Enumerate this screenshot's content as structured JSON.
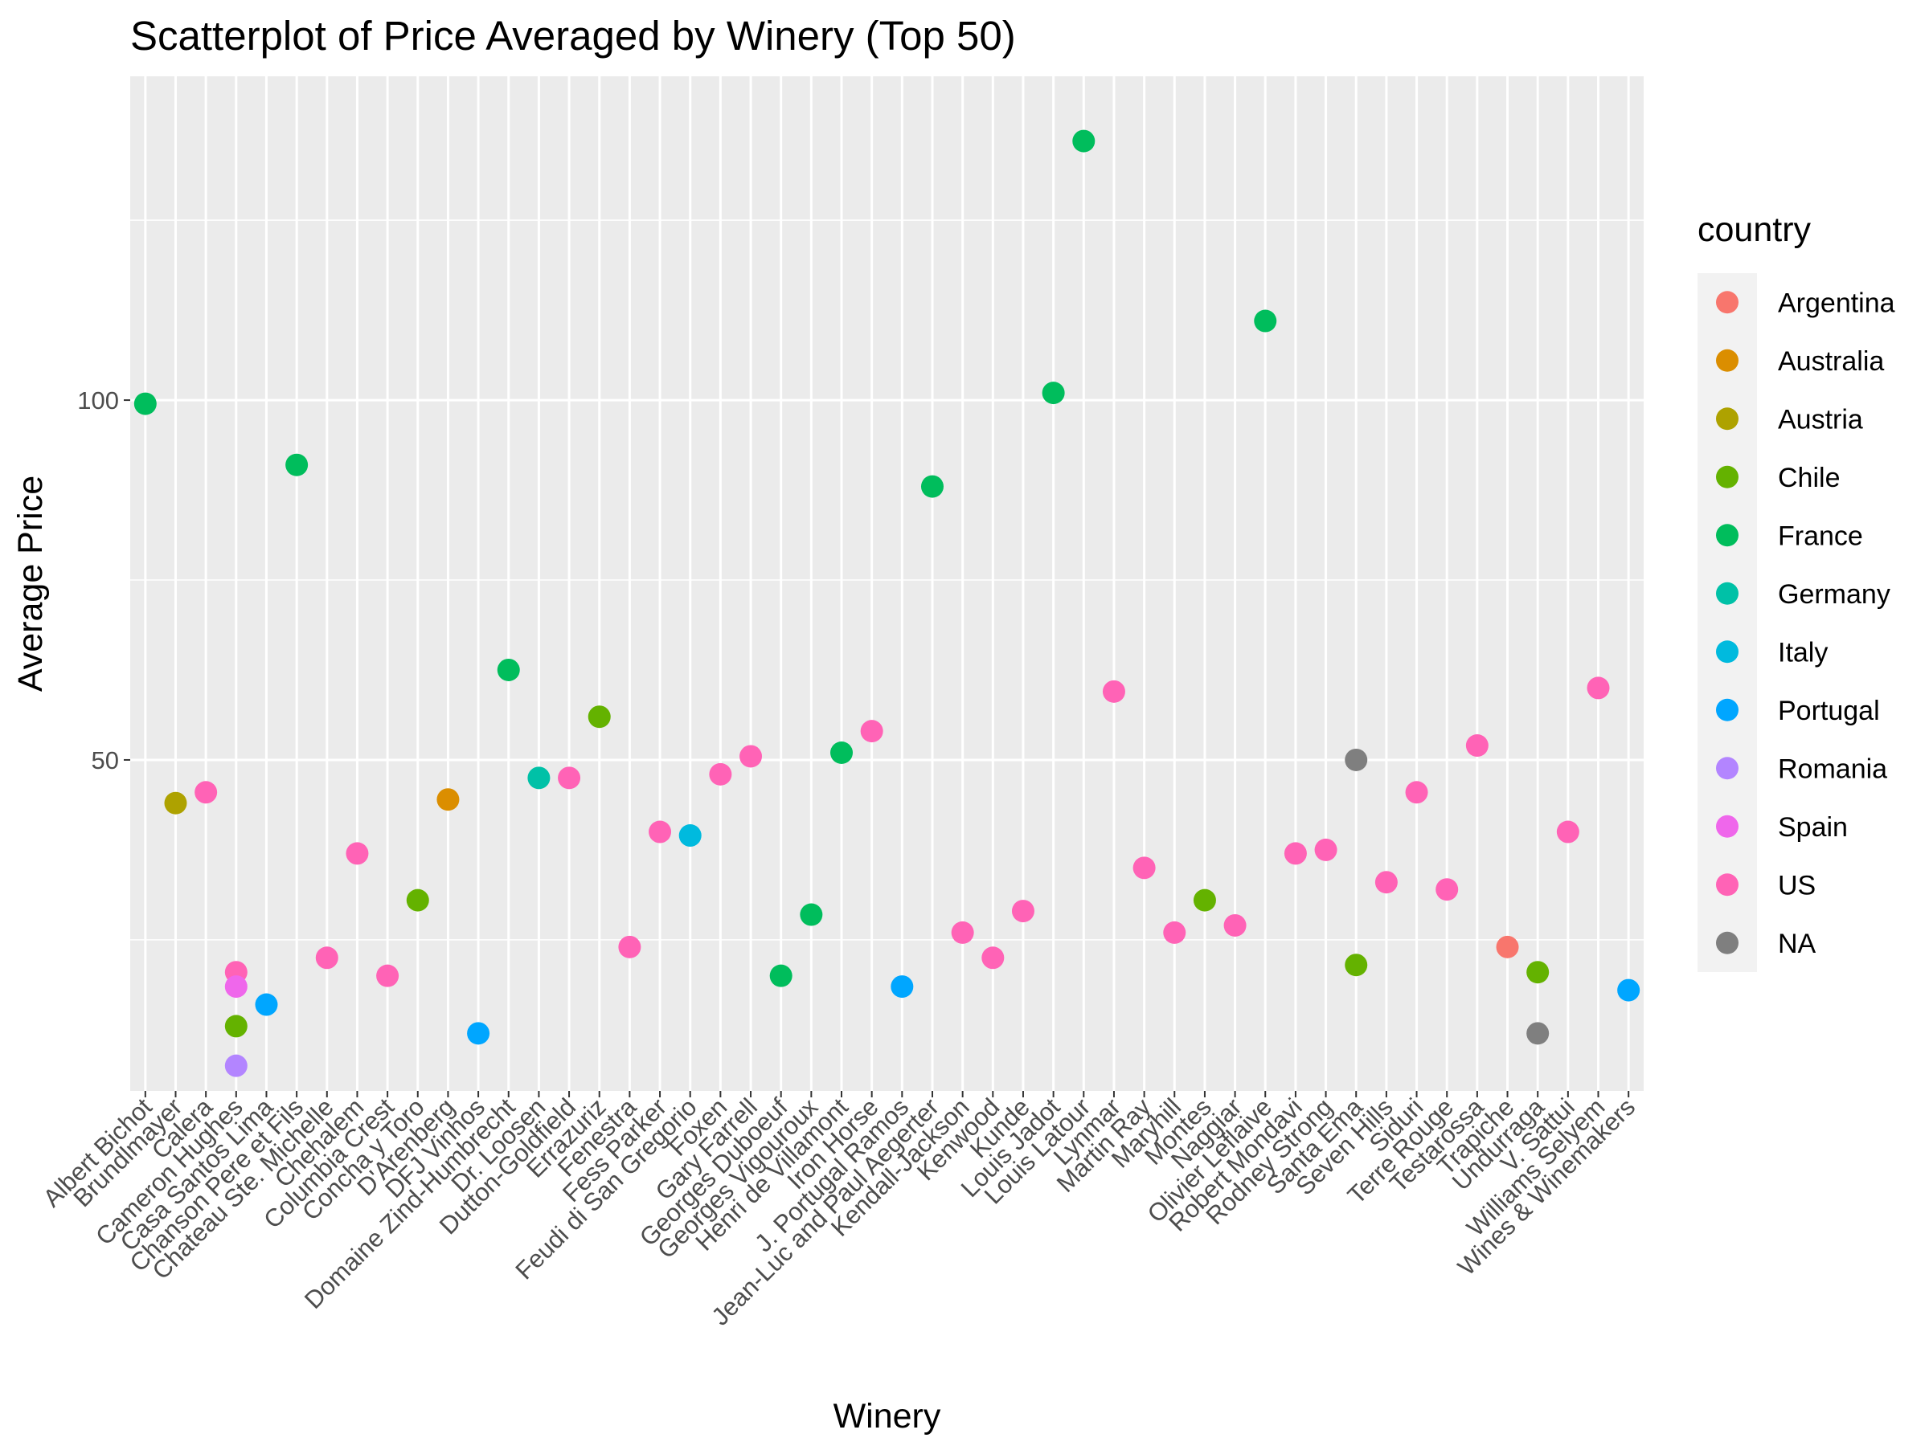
{
  "chart_data": {
    "type": "scatter",
    "title": "Scatterplot of Price Averaged by Winery (Top 50)",
    "xlabel": "Winery",
    "ylabel": "Average Price",
    "ylim": [
      4,
      145
    ],
    "y_ticks": [
      50,
      100
    ],
    "grid": true,
    "legend_title": "country",
    "legend_position": "right",
    "categories": [
      "Albert Bichot",
      "Brundlmayer",
      "Calera",
      "Cameron Hughes",
      "Casa Santos Lima",
      "Chanson Pere et Fils",
      "Chateau Ste. Michelle",
      "Chehalem",
      "Columbia Crest",
      "Concha y Toro",
      "D'Arenberg",
      "DFJ Vinhos",
      "Domaine Zind-Humbrecht",
      "Dr. Loosen",
      "Dutton-Goldfield",
      "Errazuriz",
      "Fenestra",
      "Fess Parker",
      "Feudi di San Gregorio",
      "Foxen",
      "Gary Farrell",
      "Georges Duboeuf",
      "Georges Vigouroux",
      "Henri de Villamont",
      "Iron Horse",
      "J. Portugal Ramos",
      "Jean-Luc and Paul Aegerter",
      "Kendall-Jackson",
      "Kenwood",
      "Kunde",
      "Louis Jadot",
      "Louis Latour",
      "Lynmar",
      "Martin Ray",
      "Maryhill",
      "Montes",
      "Naggiar",
      "Olivier Leflaive",
      "Robert Mondavi",
      "Rodney Strong",
      "Santa Ema",
      "Seven Hills",
      "Siduri",
      "Terre Rouge",
      "Testarossa",
      "Trapiche",
      "Undurraga",
      "V. Sattui",
      "Williams Selyem",
      "Wines & Winemakers"
    ],
    "countries": [
      {
        "name": "Argentina",
        "color": "#F8766D"
      },
      {
        "name": "Australia",
        "color": "#DB8E00"
      },
      {
        "name": "Austria",
        "color": "#AEA200"
      },
      {
        "name": "Chile",
        "color": "#64B200"
      },
      {
        "name": "France",
        "color": "#00BD5C"
      },
      {
        "name": "Germany",
        "color": "#00C1A7"
      },
      {
        "name": "Italy",
        "color": "#00BADE"
      },
      {
        "name": "Portugal",
        "color": "#00A6FF"
      },
      {
        "name": "Romania",
        "color": "#B385FF"
      },
      {
        "name": "Spain",
        "color": "#EF67EB"
      },
      {
        "name": "US",
        "color": "#FF63B6"
      },
      {
        "name": "NA",
        "color": "#7F7F7F"
      }
    ],
    "points": [
      {
        "winery": "Albert Bichot",
        "country": "France",
        "y": 99.5
      },
      {
        "winery": "Brundlmayer",
        "country": "Austria",
        "y": 44
      },
      {
        "winery": "Calera",
        "country": "US",
        "y": 45.5
      },
      {
        "winery": "Cameron Hughes",
        "country": "US",
        "y": 20.5
      },
      {
        "winery": "Cameron Hughes",
        "country": "Spain",
        "y": 18.5
      },
      {
        "winery": "Cameron Hughes",
        "country": "Chile",
        "y": 13
      },
      {
        "winery": "Cameron Hughes",
        "country": "Romania",
        "y": 7.5
      },
      {
        "winery": "Casa Santos Lima",
        "country": "Portugal",
        "y": 16
      },
      {
        "winery": "Chanson Pere et Fils",
        "country": "France",
        "y": 91
      },
      {
        "winery": "Chateau Ste. Michelle",
        "country": "US",
        "y": 22.5
      },
      {
        "winery": "Chehalem",
        "country": "US",
        "y": 37
      },
      {
        "winery": "Columbia Crest",
        "country": "US",
        "y": 20
      },
      {
        "winery": "Concha y Toro",
        "country": "Chile",
        "y": 30.5
      },
      {
        "winery": "D'Arenberg",
        "country": "Australia",
        "y": 44.5
      },
      {
        "winery": "DFJ Vinhos",
        "country": "Portugal",
        "y": 12
      },
      {
        "winery": "Domaine Zind-Humbrecht",
        "country": "France",
        "y": 62.5
      },
      {
        "winery": "Dr. Loosen",
        "country": "Germany",
        "y": 47.5
      },
      {
        "winery": "Dutton-Goldfield",
        "country": "US",
        "y": 47.5
      },
      {
        "winery": "Errazuriz",
        "country": "Chile",
        "y": 56
      },
      {
        "winery": "Fenestra",
        "country": "US",
        "y": 24
      },
      {
        "winery": "Fess Parker",
        "country": "US",
        "y": 40
      },
      {
        "winery": "Feudi di San Gregorio",
        "country": "Italy",
        "y": 39.5
      },
      {
        "winery": "Foxen",
        "country": "US",
        "y": 48
      },
      {
        "winery": "Gary Farrell",
        "country": "US",
        "y": 50.5
      },
      {
        "winery": "Georges Duboeuf",
        "country": "France",
        "y": 20
      },
      {
        "winery": "Georges Vigouroux",
        "country": "France",
        "y": 28.5
      },
      {
        "winery": "Henri de Villamont",
        "country": "France",
        "y": 51
      },
      {
        "winery": "Iron Horse",
        "country": "US",
        "y": 54
      },
      {
        "winery": "J. Portugal Ramos",
        "country": "Portugal",
        "y": 18.5
      },
      {
        "winery": "Jean-Luc and Paul Aegerter",
        "country": "France",
        "y": 88
      },
      {
        "winery": "Kendall-Jackson",
        "country": "US",
        "y": 26
      },
      {
        "winery": "Kenwood",
        "country": "US",
        "y": 22.5
      },
      {
        "winery": "Kunde",
        "country": "US",
        "y": 29
      },
      {
        "winery": "Louis Jadot",
        "country": "France",
        "y": 101
      },
      {
        "winery": "Louis Latour",
        "country": "France",
        "y": 136
      },
      {
        "winery": "Lynmar",
        "country": "US",
        "y": 59.5
      },
      {
        "winery": "Martin Ray",
        "country": "US",
        "y": 35
      },
      {
        "winery": "Maryhill",
        "country": "US",
        "y": 26
      },
      {
        "winery": "Montes",
        "country": "Chile",
        "y": 30.5
      },
      {
        "winery": "Naggiar",
        "country": "US",
        "y": 27
      },
      {
        "winery": "Olivier Leflaive",
        "country": "France",
        "y": 111
      },
      {
        "winery": "Robert Mondavi",
        "country": "US",
        "y": 37
      },
      {
        "winery": "Rodney Strong",
        "country": "US",
        "y": 37.5
      },
      {
        "winery": "Santa Ema",
        "country": "NA",
        "y": 50
      },
      {
        "winery": "Santa Ema",
        "country": "Chile",
        "y": 21.5
      },
      {
        "winery": "Seven Hills",
        "country": "US",
        "y": 33
      },
      {
        "winery": "Siduri",
        "country": "US",
        "y": 45.5
      },
      {
        "winery": "Terre Rouge",
        "country": "US",
        "y": 32
      },
      {
        "winery": "Testarossa",
        "country": "US",
        "y": 52
      },
      {
        "winery": "Trapiche",
        "country": "Argentina",
        "y": 24
      },
      {
        "winery": "Undurraga",
        "country": "Chile",
        "y": 20.5
      },
      {
        "winery": "Undurraga",
        "country": "NA",
        "y": 12
      },
      {
        "winery": "V. Sattui",
        "country": "US",
        "y": 40
      },
      {
        "winery": "Williams Selyem",
        "country": "US",
        "y": 60
      },
      {
        "winery": "Wines & Winemakers",
        "country": "Portugal",
        "y": 18
      }
    ]
  }
}
